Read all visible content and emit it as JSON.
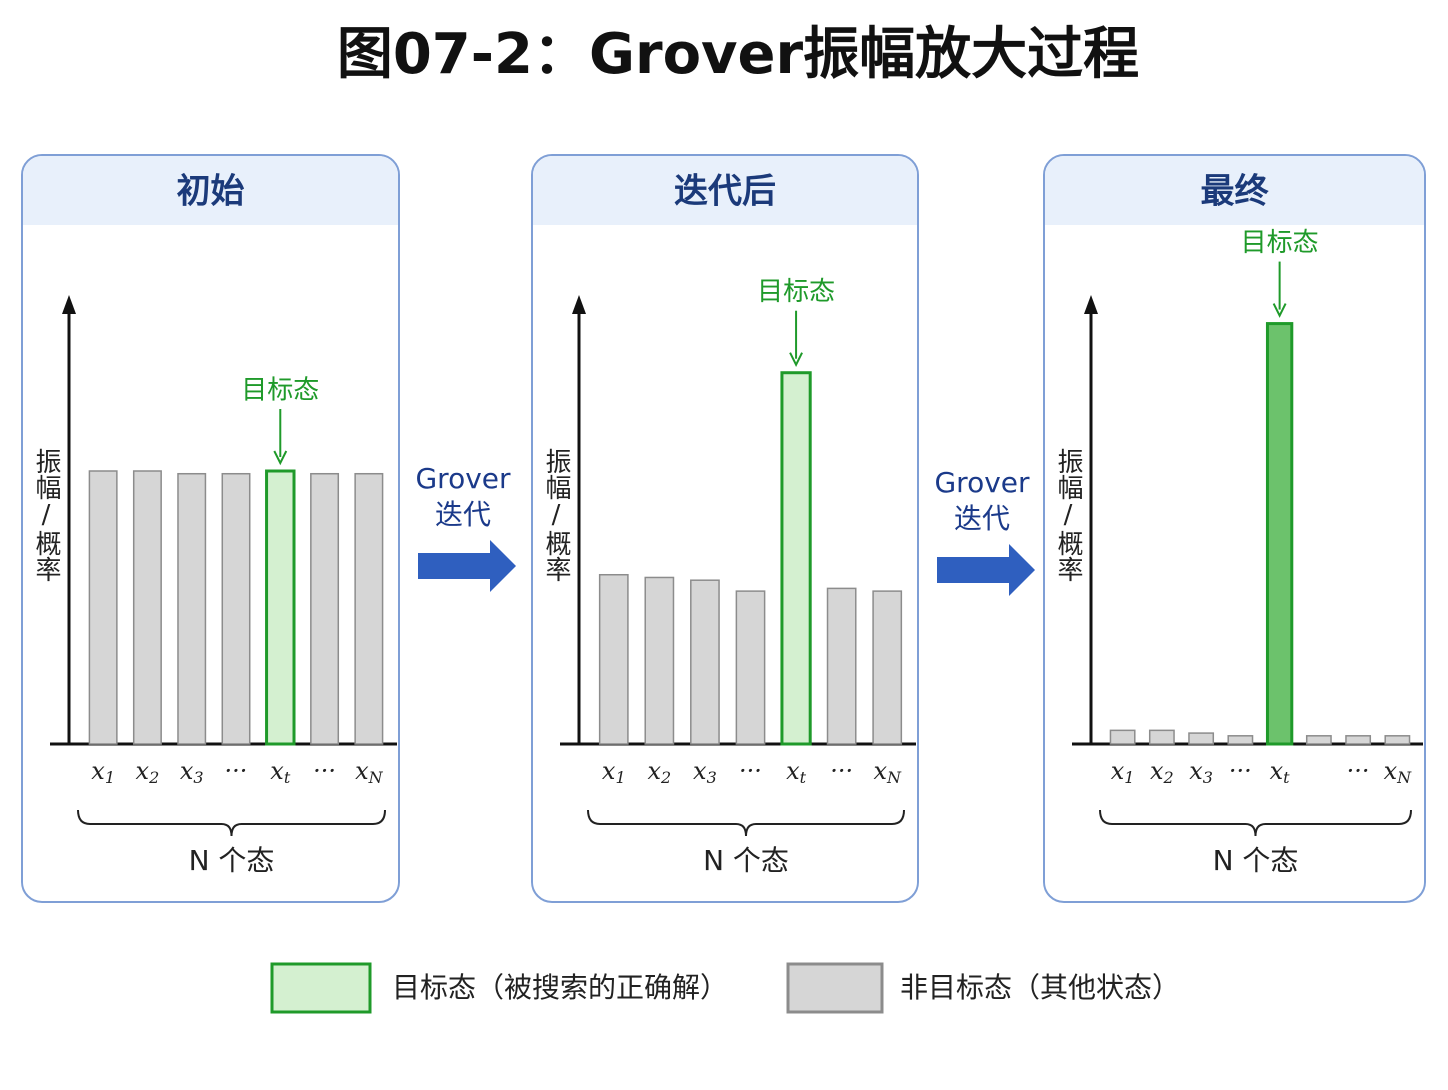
{
  "title": "图07-2：Grover振幅放大过程",
  "panels": [
    {
      "title": "初始",
      "y_label": "振幅/概率",
      "target_label": "目标态",
      "group_label": "N 个态",
      "categories": [
        [
          "x",
          "1"
        ],
        [
          "x",
          "2"
        ],
        [
          "x",
          "3"
        ],
        [
          "···"
        ],
        [
          "x",
          "t"
        ],
        [
          "···"
        ],
        [
          "x",
          "N"
        ]
      ],
      "values": [
        100,
        100,
        99,
        99,
        100,
        99,
        99
      ],
      "target_index": 4,
      "target_color": "#d4f0d0"
    },
    {
      "title": "迭代后",
      "y_label": "振幅/概率",
      "target_label": "目标态",
      "group_label": "N 个态",
      "categories": [
        [
          "x",
          "1"
        ],
        [
          "x",
          "2"
        ],
        [
          "x",
          "3"
        ],
        [
          "···"
        ],
        [
          "x",
          "t"
        ],
        [
          "···"
        ],
        [
          "x",
          "N"
        ]
      ],
      "values": [
        62,
        61,
        60,
        56,
        136,
        57,
        56
      ],
      "target_index": 4,
      "target_color": "#d4f0d0"
    },
    {
      "title": "最终",
      "y_label": "振幅/概率",
      "target_label": "目标态",
      "group_label": "N 个态",
      "categories": [
        [
          "x",
          "1"
        ],
        [
          "x",
          "2"
        ],
        [
          "x",
          "3"
        ],
        [
          "···"
        ],
        [
          "x",
          "t"
        ],
        null,
        [
          "···"
        ],
        [
          "x",
          "N"
        ]
      ],
      "values": [
        5,
        5,
        4,
        3,
        154,
        3,
        3,
        3
      ],
      "target_index": 4,
      "target_color": "#6cc26c"
    }
  ],
  "arrows": [
    {
      "label_lines": [
        "Grover",
        "迭代"
      ]
    },
    {
      "label_lines": [
        "Grover",
        "迭代"
      ]
    }
  ],
  "legend": [
    {
      "label": "目标态（被搜索的正确解）",
      "fill": "#d4f0d0",
      "stroke": "#1f9a2a"
    },
    {
      "label": "非目标态（其他状态）",
      "fill": "#d6d6d6",
      "stroke": "#8c8c8c"
    }
  ]
}
